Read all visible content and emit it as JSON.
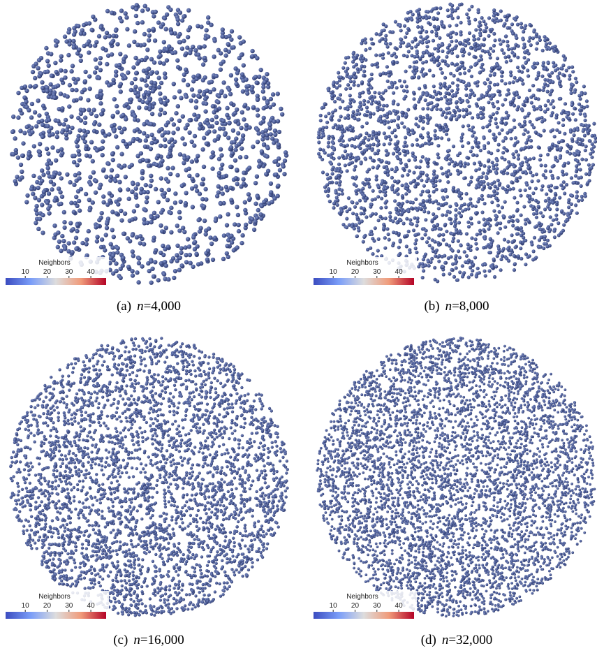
{
  "colorbar": {
    "title": "Neighbors",
    "range": [
      1,
      47
    ],
    "ticks": [
      10,
      20,
      30,
      40
    ]
  },
  "panels": [
    {
      "label": "(a)",
      "variable": "n",
      "value_text": "=4,000"
    },
    {
      "label": "(b)",
      "variable": "n",
      "value_text": "=8,000"
    },
    {
      "label": "(c)",
      "variable": "n",
      "value_text": "=16,000"
    },
    {
      "label": "(d)",
      "variable": "n",
      "value_text": "=32,000"
    }
  ]
}
